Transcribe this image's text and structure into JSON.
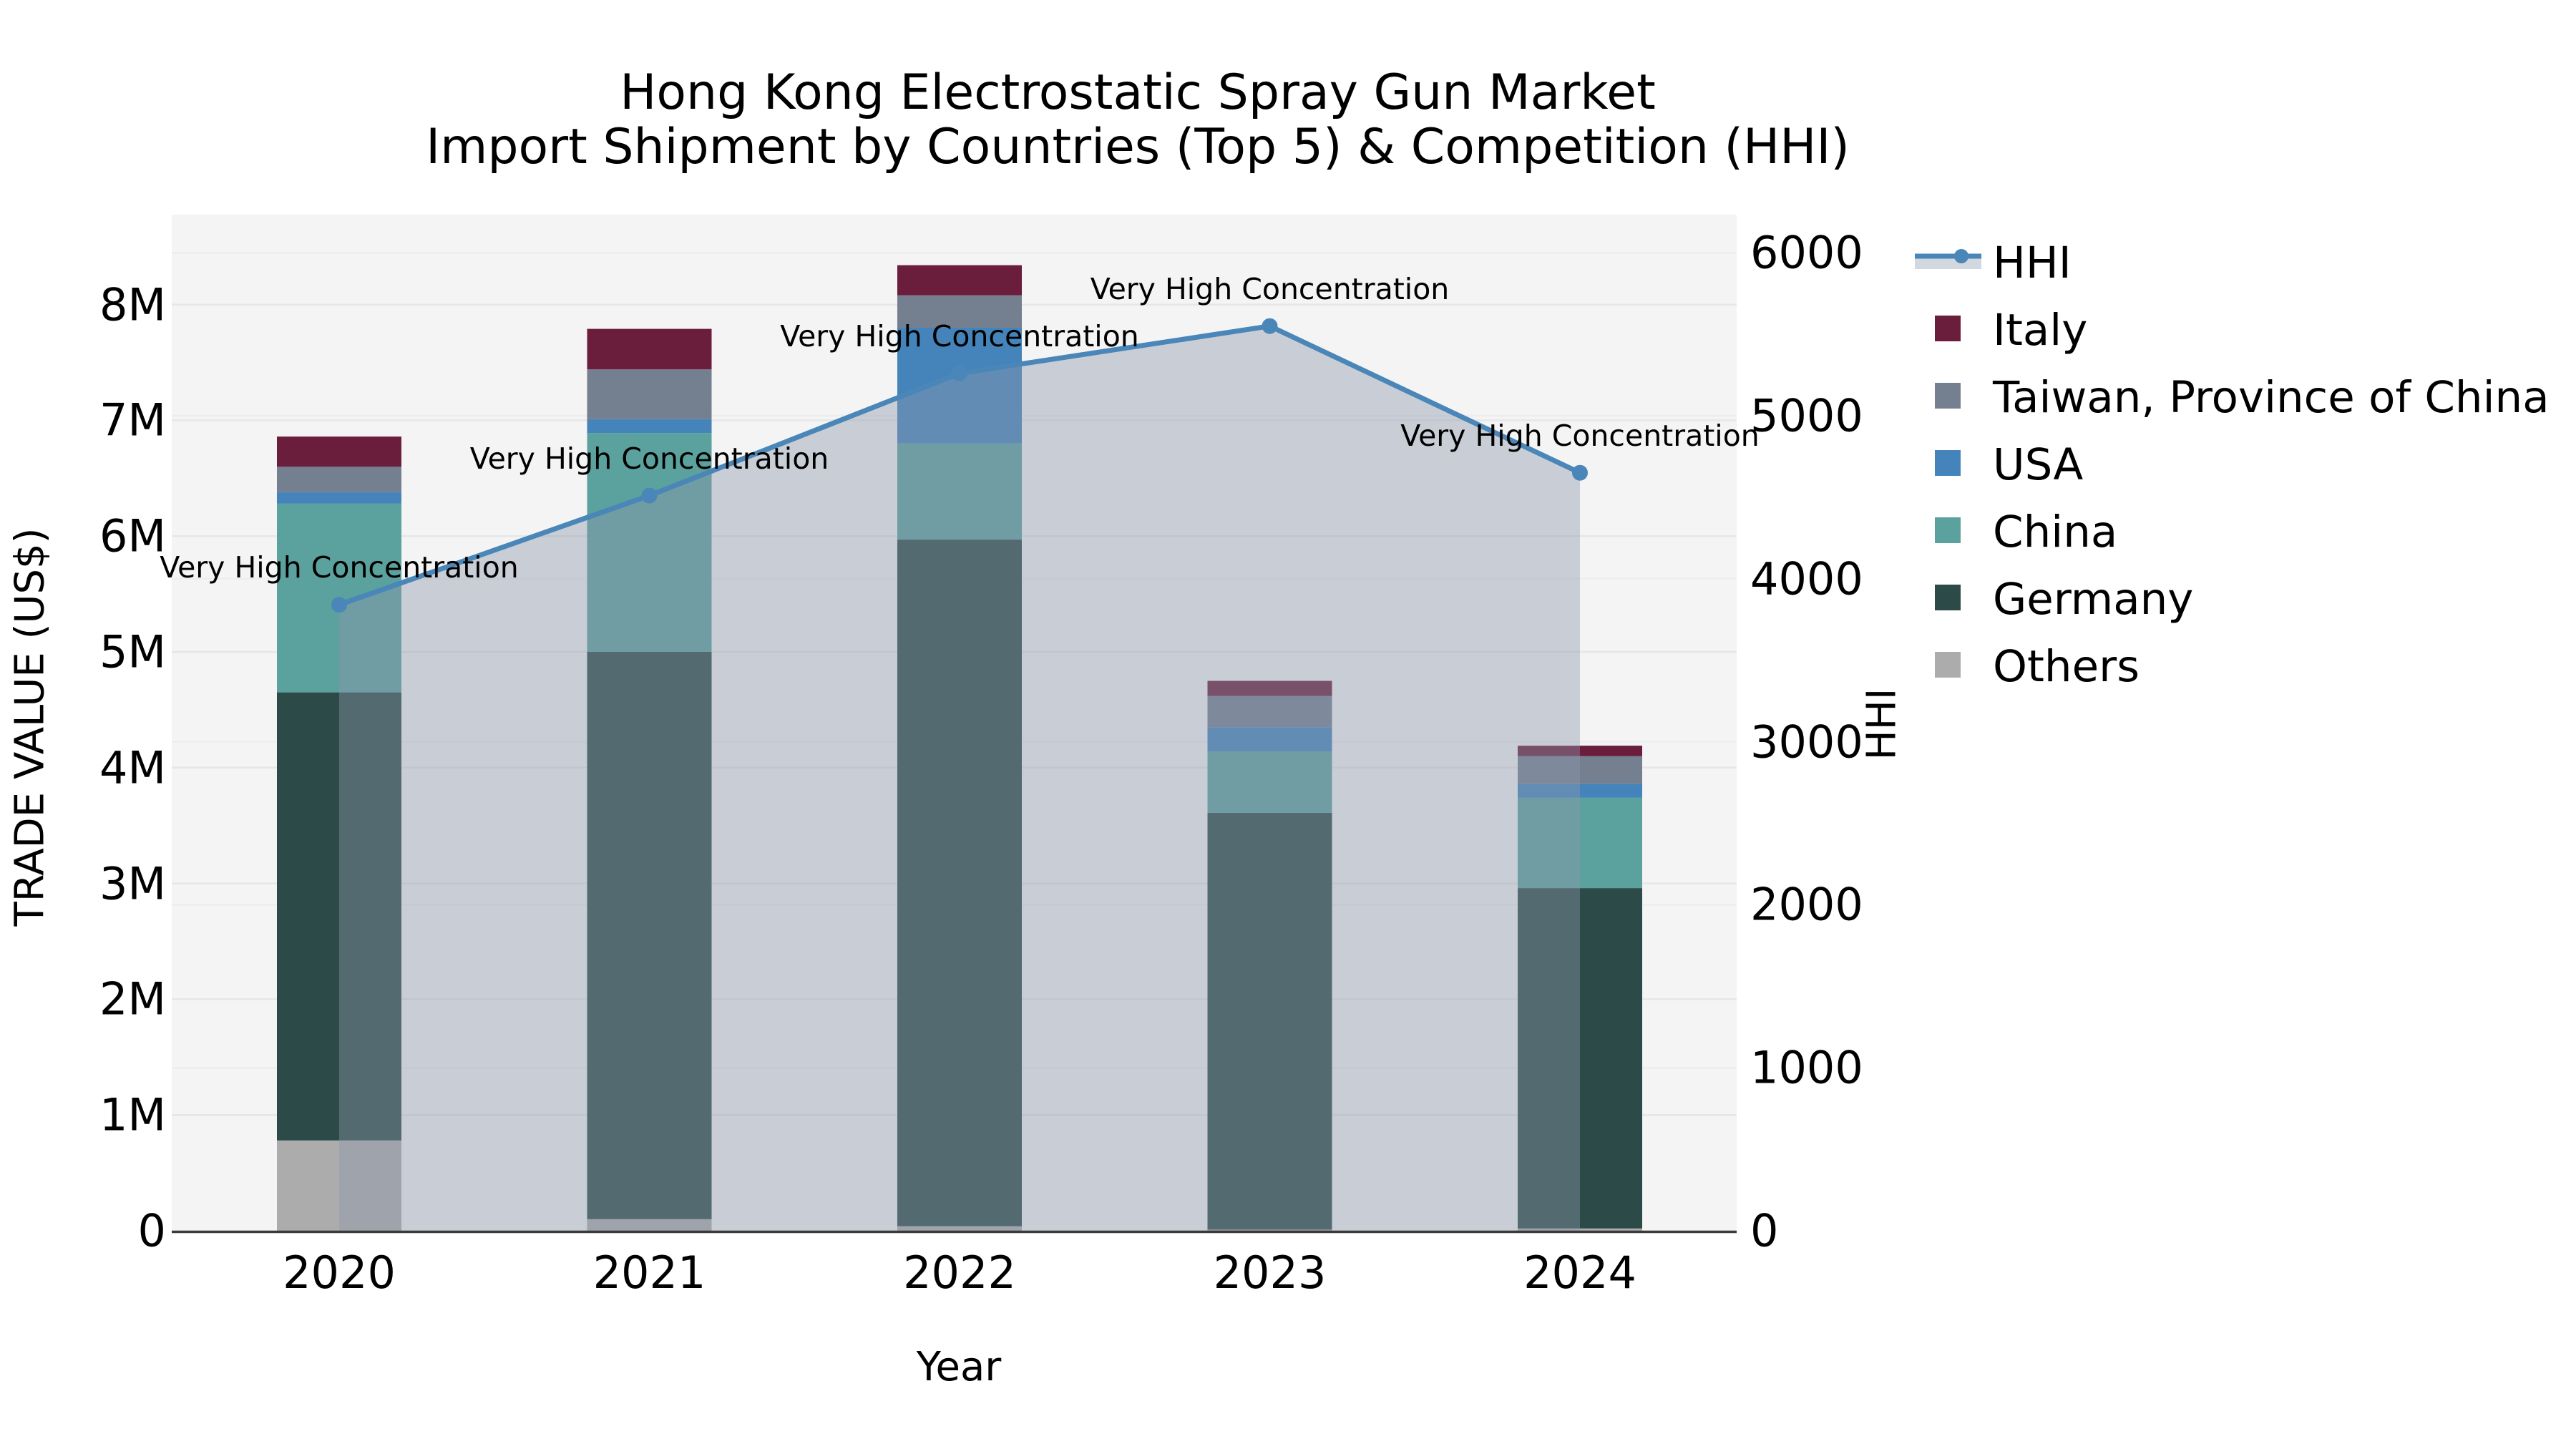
{
  "title": {
    "line1": "Hong Kong Electrostatic Spray Gun Market",
    "line2": "Import Shipment by Countries (Top 5) & Competition (HHI)"
  },
  "axes": {
    "ylabel_left": "TRADE VALUE (US$)",
    "ylabel_right": "HHI",
    "xlabel": "Year"
  },
  "legend": {
    "entries": [
      "HHI",
      "Italy",
      "Taiwan, Province of China",
      "USA",
      "China",
      "Germany",
      "Others"
    ]
  },
  "colors": {
    "plot_bg": "#f4f4f4",
    "grid_left": "#e6e6e6",
    "grid_right": "#ededed",
    "axis_line": "#3a3a3a",
    "hhi_line": "#4a86b8",
    "hhi_fill": "rgba(140,152,173,0.41)",
    "legend_band": "#d2d8e0"
  },
  "chart_data": {
    "type": "bar",
    "subtype": "stacked-bars-with-line",
    "title": "Hong Kong Electrostatic Spray Gun Market — Import Shipment by Countries (Top 5) & Competition (HHI)",
    "xlabel": "Year",
    "ylabel": "TRADE VALUE (US$)",
    "ylabel2": "HHI",
    "categories": [
      "2020",
      "2021",
      "2022",
      "2023",
      "2024"
    ],
    "bar_unit": "millions US$",
    "series": [
      {
        "name": "Others",
        "color": "#acacac",
        "values": [
          0.78,
          0.1,
          0.04,
          0.01,
          0.02
        ]
      },
      {
        "name": "Germany",
        "color": "#2c4a48",
        "values": [
          3.87,
          4.9,
          5.93,
          3.6,
          2.94
        ]
      },
      {
        "name": "China",
        "color": "#5ba19d",
        "values": [
          1.63,
          1.89,
          0.83,
          0.53,
          0.78
        ]
      },
      {
        "name": "USA",
        "color": "#4584ba",
        "values": [
          0.1,
          0.12,
          1.0,
          0.21,
          0.12
        ]
      },
      {
        "name": "Taiwan, Province of China",
        "color": "#74808f",
        "values": [
          0.22,
          0.43,
          0.28,
          0.27,
          0.24
        ]
      },
      {
        "name": "Italy",
        "color": "#6b1d3c",
        "values": [
          0.26,
          0.35,
          0.26,
          0.13,
          0.09
        ]
      }
    ],
    "line_series": {
      "name": "HHI",
      "values": [
        3840,
        4510,
        5260,
        5550,
        4650
      ],
      "axis": "right",
      "area_fill": true
    },
    "annotations": [
      {
        "x": "2020",
        "text": "Very High Concentration"
      },
      {
        "x": "2021",
        "text": "Very High Concentration"
      },
      {
        "x": "2022",
        "text": "Very High Concentration"
      },
      {
        "x": "2023",
        "text": "Very High Concentration"
      },
      {
        "x": "2024",
        "text": "Very High Concentration"
      }
    ],
    "yticks_left": [
      {
        "label": "0",
        "value": 0
      },
      {
        "label": "1M",
        "value": 1
      },
      {
        "label": "2M",
        "value": 2
      },
      {
        "label": "3M",
        "value": 3
      },
      {
        "label": "4M",
        "value": 4
      },
      {
        "label": "5M",
        "value": 5
      },
      {
        "label": "6M",
        "value": 6
      },
      {
        "label": "7M",
        "value": 7
      },
      {
        "label": "8M",
        "value": 8
      }
    ],
    "yticks_right": [
      {
        "label": "0",
        "value": 0
      },
      {
        "label": "1000",
        "value": 1000
      },
      {
        "label": "2000",
        "value": 2000
      },
      {
        "label": "3000",
        "value": 3000
      },
      {
        "label": "4000",
        "value": 4000
      },
      {
        "label": "5000",
        "value": 5000
      },
      {
        "label": "6000",
        "value": 6000
      }
    ],
    "ylim_left": [
      0,
      8.78
    ],
    "ylim_right": [
      0,
      6230
    ],
    "grid": true,
    "legend_position": "right"
  }
}
